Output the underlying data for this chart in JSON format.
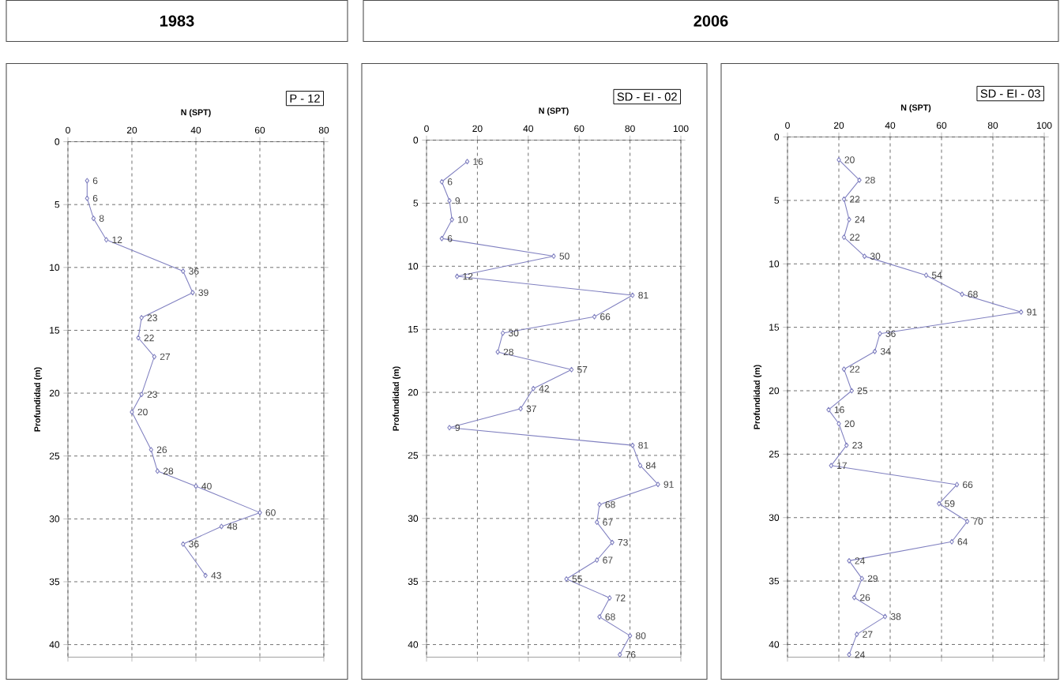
{
  "chart_data": [
    {
      "type": "line",
      "title": "1983",
      "subtitle": "P - 12",
      "xlabel": "N (SPT)",
      "ylabel": "Profundidad (m)",
      "xlim": [
        0,
        80
      ],
      "xticks": [
        0,
        20,
        40,
        60,
        80
      ],
      "ylim": [
        41,
        0
      ],
      "yticks": [
        0,
        5,
        10,
        15,
        20,
        25,
        30,
        35,
        40
      ],
      "grid": true,
      "marker": "diamond",
      "orientation": "horizontal",
      "series": [
        {
          "color": "#8080c0",
          "values": [
            6,
            6,
            8,
            12,
            36,
            39,
            23,
            22,
            27,
            23,
            20,
            26,
            28,
            40,
            60,
            48,
            36,
            43
          ],
          "x": [
            3.1,
            4.5,
            6.1,
            7.8,
            10.3,
            12.0,
            14.0,
            15.6,
            17.1,
            20.1,
            21.5,
            24.5,
            26.2,
            27.4,
            29.5,
            30.6,
            32.0,
            34.5
          ],
          "value_labels": [
            "6",
            "6",
            "8",
            "12",
            "36",
            "39",
            "23",
            "22",
            "27",
            "23",
            "20",
            "26",
            "28",
            "40",
            "60",
            "48",
            "36",
            "43"
          ]
        }
      ]
    },
    {
      "type": "line",
      "title": "2006",
      "subtitle": "SD - EI - 02",
      "xlabel": "N (SPT)",
      "ylabel": "Profundidad (m)",
      "xlim": [
        0,
        100
      ],
      "xticks": [
        0,
        20,
        40,
        60,
        80,
        100
      ],
      "ylim": [
        41,
        0
      ],
      "yticks": [
        0,
        5,
        10,
        15,
        20,
        25,
        30,
        35,
        40
      ],
      "grid": true,
      "marker": "diamond",
      "orientation": "horizontal",
      "series": [
        {
          "color": "#8080c0",
          "values": [
            16,
            6,
            9,
            10,
            6,
            50,
            12,
            81,
            66,
            30,
            28,
            57,
            42,
            37,
            9,
            81,
            84,
            91,
            68,
            67,
            73,
            67,
            55,
            72,
            68,
            80,
            76
          ],
          "x": [
            1.7,
            3.3,
            4.8,
            6.3,
            7.8,
            9.2,
            10.8,
            12.3,
            14.0,
            15.3,
            16.8,
            18.2,
            19.7,
            21.3,
            22.8,
            24.2,
            25.8,
            27.3,
            28.9,
            30.3,
            31.9,
            33.3,
            34.8,
            36.3,
            37.8,
            39.3,
            40.8
          ],
          "value_labels": [
            "16",
            "6",
            "9",
            "10",
            "6",
            "50",
            "12",
            "81",
            "66",
            "30",
            "28",
            "57",
            "42",
            "37",
            "9",
            "81",
            "84",
            "91",
            "68",
            "67",
            "73",
            "67",
            "55",
            "72",
            "68",
            "80",
            "76"
          ]
        }
      ]
    },
    {
      "type": "line",
      "subtitle": "SD - EI - 03",
      "xlabel": "N (SPT)",
      "ylabel": "Profundidad (m)",
      "xlim": [
        0,
        100
      ],
      "xticks": [
        0,
        20,
        40,
        60,
        80,
        100
      ],
      "ylim": [
        41,
        0
      ],
      "yticks": [
        0,
        5,
        10,
        15,
        20,
        25,
        30,
        35,
        40
      ],
      "grid": true,
      "marker": "diamond",
      "orientation": "horizontal",
      "series": [
        {
          "color": "#8080c0",
          "values": [
            20,
            28,
            22,
            24,
            22,
            30,
            54,
            68,
            91,
            36,
            34,
            22,
            25,
            16,
            20,
            23,
            17,
            66,
            59,
            70,
            64,
            24,
            29,
            26,
            38,
            27,
            24
          ],
          "x": [
            1.8,
            3.4,
            4.9,
            6.5,
            7.9,
            9.4,
            10.9,
            12.4,
            13.8,
            15.5,
            16.9,
            18.3,
            20.0,
            21.5,
            22.6,
            24.3,
            25.9,
            27.4,
            28.9,
            30.3,
            31.9,
            33.4,
            34.8,
            36.3,
            37.8,
            39.2,
            40.8
          ],
          "value_labels": [
            "20",
            "28",
            "22",
            "24",
            "22",
            "30",
            "54",
            "68",
            "91",
            "36",
            "34",
            "22",
            "25",
            "16",
            "20",
            "23",
            "17",
            "66",
            "59",
            "70",
            "64",
            "24",
            "29",
            "26",
            "38",
            "27",
            "24"
          ]
        }
      ]
    }
  ]
}
